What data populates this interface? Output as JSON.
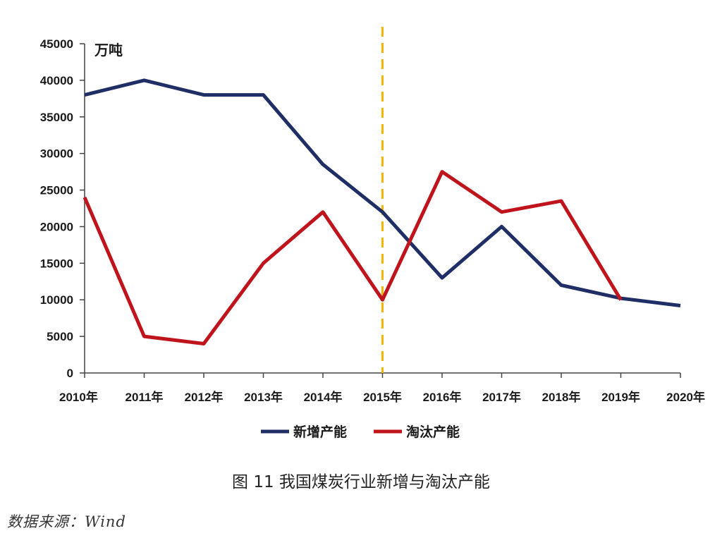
{
  "chart_data": {
    "type": "line",
    "categories": [
      "2010年",
      "2011年",
      "2012年",
      "2013年",
      "2014年",
      "2015年",
      "2016年",
      "2017年",
      "2018年",
      "2019年",
      "2020年"
    ],
    "series": [
      {
        "name": "新增产能",
        "color": "#1f2f66",
        "values": [
          38000,
          40000,
          38000,
          38000,
          28500,
          22000,
          13000,
          20000,
          12000,
          10200,
          9200
        ]
      },
      {
        "name": "淘汰产能",
        "color": "#c0141c",
        "values": [
          24000,
          5000,
          4000,
          15000,
          22000,
          10000,
          27500,
          22000,
          23500,
          10000,
          null
        ]
      }
    ],
    "y_unit_label": "万吨",
    "yticks": [
      "0",
      "5000",
      "10000",
      "15000",
      "20000",
      "25000",
      "30000",
      "35000",
      "40000",
      "45000"
    ],
    "ylim": [
      0,
      45000
    ],
    "grid": false,
    "legend": "bottom-center",
    "reference_line": {
      "category": "2015年",
      "style": "dashed",
      "color": "#f2b600"
    }
  },
  "caption": "图 11  我国煤炭行业新增与淘汰产能",
  "source": "数据来源：Wind"
}
